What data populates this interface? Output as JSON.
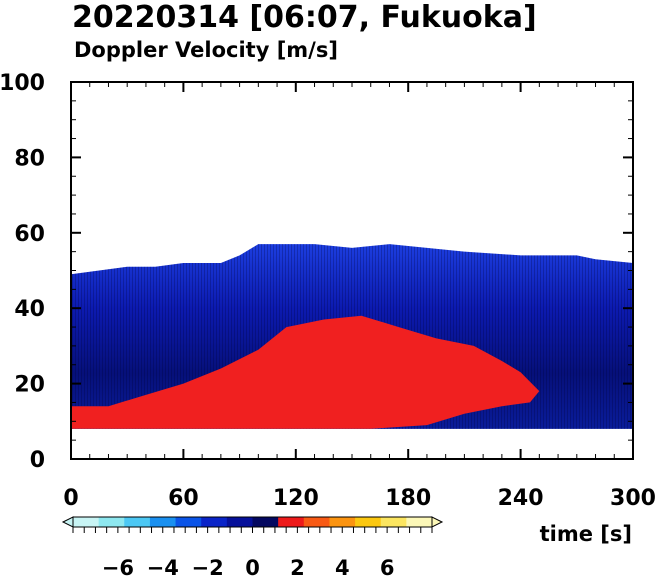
{
  "title": "20220314 [06:07, Fukuoka]",
  "subtitle": "Doppler Velocity [m/s]",
  "chart_data": {
    "type": "heatmap",
    "xlabel": "time [s]",
    "ylabel": "",
    "xlim": [
      0,
      300
    ],
    "ylim": [
      0,
      100
    ],
    "x_ticks": [
      "0",
      "60",
      "120",
      "180",
      "240",
      "300"
    ],
    "y_ticks": [
      "0",
      "20",
      "40",
      "60",
      "80",
      "100"
    ],
    "grid": false,
    "data_floor": 8,
    "echo_top": [
      [
        0,
        49
      ],
      [
        15,
        50
      ],
      [
        30,
        51
      ],
      [
        45,
        51
      ],
      [
        60,
        52
      ],
      [
        80,
        52
      ],
      [
        90,
        54
      ],
      [
        100,
        57
      ],
      [
        130,
        57
      ],
      [
        150,
        56
      ],
      [
        170,
        57
      ],
      [
        190,
        56
      ],
      [
        210,
        55
      ],
      [
        240,
        54
      ],
      [
        270,
        54
      ],
      [
        280,
        53
      ],
      [
        300,
        52
      ]
    ],
    "positive_region": {
      "lower": [
        [
          0,
          8
        ],
        [
          40,
          8
        ],
        [
          80,
          8
        ],
        [
          120,
          8
        ],
        [
          160,
          8
        ],
        [
          190,
          9
        ],
        [
          210,
          12
        ],
        [
          230,
          14
        ],
        [
          245,
          15
        ],
        [
          250,
          18
        ]
      ],
      "upper": [
        [
          0,
          14
        ],
        [
          20,
          14
        ],
        [
          40,
          17
        ],
        [
          60,
          20
        ],
        [
          80,
          24
        ],
        [
          100,
          29
        ],
        [
          115,
          35
        ],
        [
          135,
          37
        ],
        [
          155,
          38
        ],
        [
          175,
          35
        ],
        [
          195,
          32
        ],
        [
          215,
          30
        ],
        [
          230,
          26
        ],
        [
          240,
          23
        ],
        [
          250,
          18
        ]
      ]
    },
    "colorbar": {
      "range": [
        -8,
        8
      ],
      "ticks": [
        "−6",
        "−4",
        "−2",
        "0",
        "2",
        "4",
        "6"
      ],
      "colors": [
        "#c8f4f4",
        "#8ee8f0",
        "#4cc8f4",
        "#1a90f0",
        "#0a54e8",
        "#0a24c8",
        "#06109a",
        "#040860",
        "#ee1a1a",
        "#f85a14",
        "#fc9410",
        "#fcc810",
        "#fce660",
        "#fcf8b8"
      ]
    }
  }
}
